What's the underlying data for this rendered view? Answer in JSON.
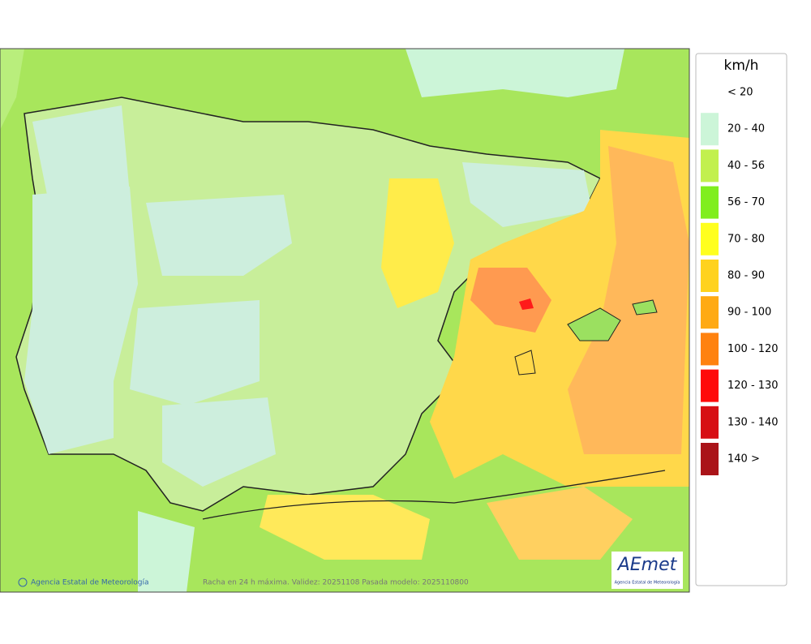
{
  "legend": {
    "title": "km/h",
    "items": [
      {
        "label": "< 20",
        "color": "#ffffff"
      },
      {
        "label": "20 - 40",
        "color": "#ccf5d8"
      },
      {
        "label": "40 - 56",
        "color": "#c2f04e"
      },
      {
        "label": "56 - 70",
        "color": "#80ee1e"
      },
      {
        "label": "70 - 80",
        "color": "#ffff1e"
      },
      {
        "label": "80 - 90",
        "color": "#ffd21e"
      },
      {
        "label": "90 - 100",
        "color": "#ffaa14"
      },
      {
        "label": "100 - 120",
        "color": "#ff820f"
      },
      {
        "label": "120 - 130",
        "color": "#ff0a0a"
      },
      {
        "label": "130 - 140",
        "color": "#d70f14"
      },
      {
        "label": "140 >",
        "color": "#aa1419"
      }
    ]
  },
  "footer": {
    "credit": "Agencia Estatal de Meteorología",
    "caption": "Racha en 24 h máxima. Validez: 20251108 Pasada modelo: 2025110800"
  },
  "logo": {
    "name": "AEmet",
    "subtitle": "Agencia Estatal de Meteorología"
  }
}
